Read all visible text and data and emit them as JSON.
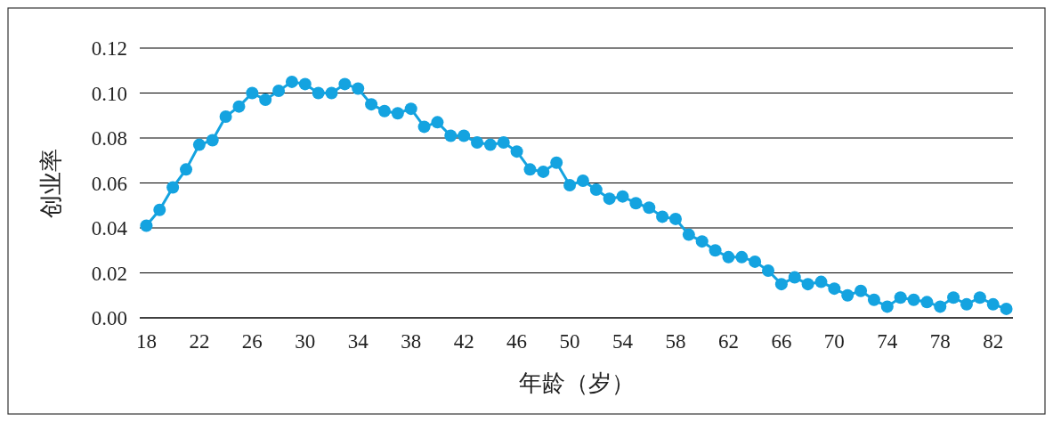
{
  "chart_data": {
    "type": "line",
    "xlabel": "年龄（岁）",
    "ylabel": "创业率",
    "x": [
      18,
      19,
      20,
      21,
      22,
      23,
      24,
      25,
      26,
      27,
      28,
      29,
      30,
      31,
      32,
      33,
      34,
      35,
      36,
      37,
      38,
      39,
      40,
      41,
      42,
      43,
      44,
      45,
      46,
      47,
      48,
      49,
      50,
      51,
      52,
      53,
      54,
      55,
      56,
      57,
      58,
      59,
      60,
      61,
      62,
      63,
      64,
      65,
      66,
      67,
      68,
      69,
      70,
      71,
      72,
      73,
      74,
      75,
      76,
      77,
      78,
      79,
      80,
      81,
      82,
      83
    ],
    "series": [
      {
        "color": "#14a3e0",
        "values": [
          0.041,
          0.048,
          0.058,
          0.066,
          0.077,
          0.079,
          0.0895,
          0.094,
          0.1,
          0.097,
          0.101,
          0.105,
          0.104,
          0.1,
          0.1,
          0.104,
          0.102,
          0.095,
          0.092,
          0.091,
          0.093,
          0.085,
          0.087,
          0.081,
          0.081,
          0.078,
          0.077,
          0.078,
          0.074,
          0.066,
          0.065,
          0.069,
          0.059,
          0.061,
          0.057,
          0.053,
          0.054,
          0.051,
          0.049,
          0.045,
          0.044,
          0.037,
          0.034,
          0.03,
          0.027,
          0.027,
          0.025,
          0.021,
          0.015,
          0.018,
          0.015,
          0.016,
          0.013,
          0.01,
          0.012,
          0.008,
          0.005,
          0.009,
          0.008,
          0.007,
          0.005,
          0.009,
          0.006,
          0.009,
          0.006,
          0.004
        ]
      }
    ],
    "xlim": [
      17.5,
      83.5
    ],
    "xticks": [
      18,
      22,
      26,
      30,
      34,
      38,
      42,
      46,
      50,
      54,
      58,
      62,
      66,
      70,
      74,
      78,
      82
    ],
    "ylim": [
      0,
      0.12
    ],
    "yticks": [
      {
        "value": 0,
        "label": "0.00"
      },
      {
        "value": 0.02,
        "label": "0.02"
      },
      {
        "value": 0.04,
        "label": "0.04"
      },
      {
        "value": 0.06,
        "label": "0.06"
      },
      {
        "value": 0.08,
        "label": "0.08"
      },
      {
        "value": 0.1,
        "label": "0.10"
      },
      {
        "value": 0.12,
        "label": "0.12"
      }
    ],
    "grid": "y",
    "marker": "circle",
    "line_style": "solid"
  }
}
